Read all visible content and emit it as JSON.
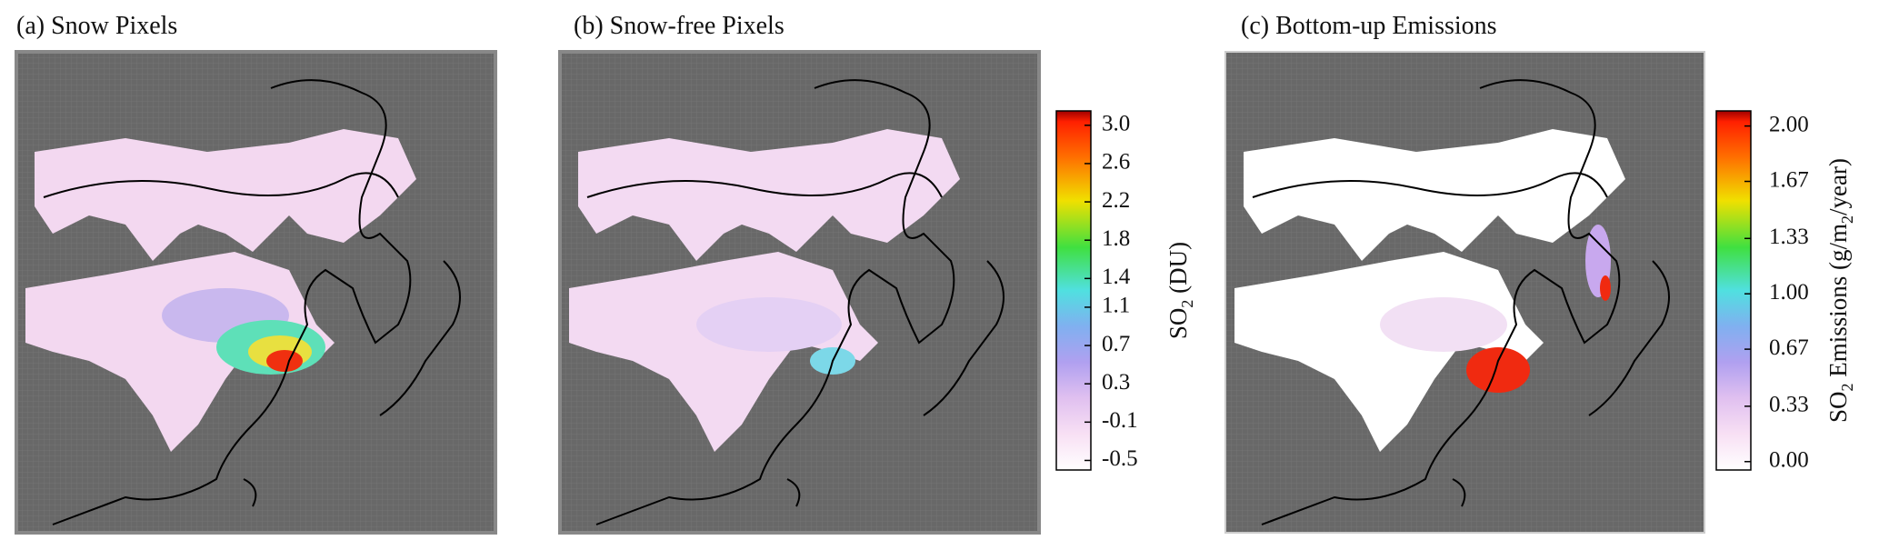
{
  "figure": {
    "panels": [
      {
        "title": "(a) Snow Pixels"
      },
      {
        "title": "(b) Snow-free Pixels"
      },
      {
        "title": "(c) Bottom-up Emissions"
      }
    ],
    "colorbars": [
      {
        "label": [
          "SO",
          "2",
          " (DU)"
        ],
        "lim": [
          -0.6,
          3.15
        ],
        "ticks": [
          {
            "value": 3,
            "label": "3.0"
          },
          2.6,
          2.2,
          1.8,
          1.4,
          1.1,
          0.7,
          0.3,
          -0.1,
          -0.5
        ]
      },
      {
        "label": [
          "SO",
          "2",
          " Emissions (g/m",
          "2",
          "/year)"
        ],
        "lim": [
          -0.05,
          2.09
        ],
        "ticks": [
          {
            "value": 2,
            "label": "2.00"
          },
          1.67,
          1.33,
          {
            "value": 1,
            "label": "1.00"
          },
          0.67,
          0.33,
          {
            "value": 0,
            "label": "0.00"
          }
        ]
      }
    ]
  }
}
